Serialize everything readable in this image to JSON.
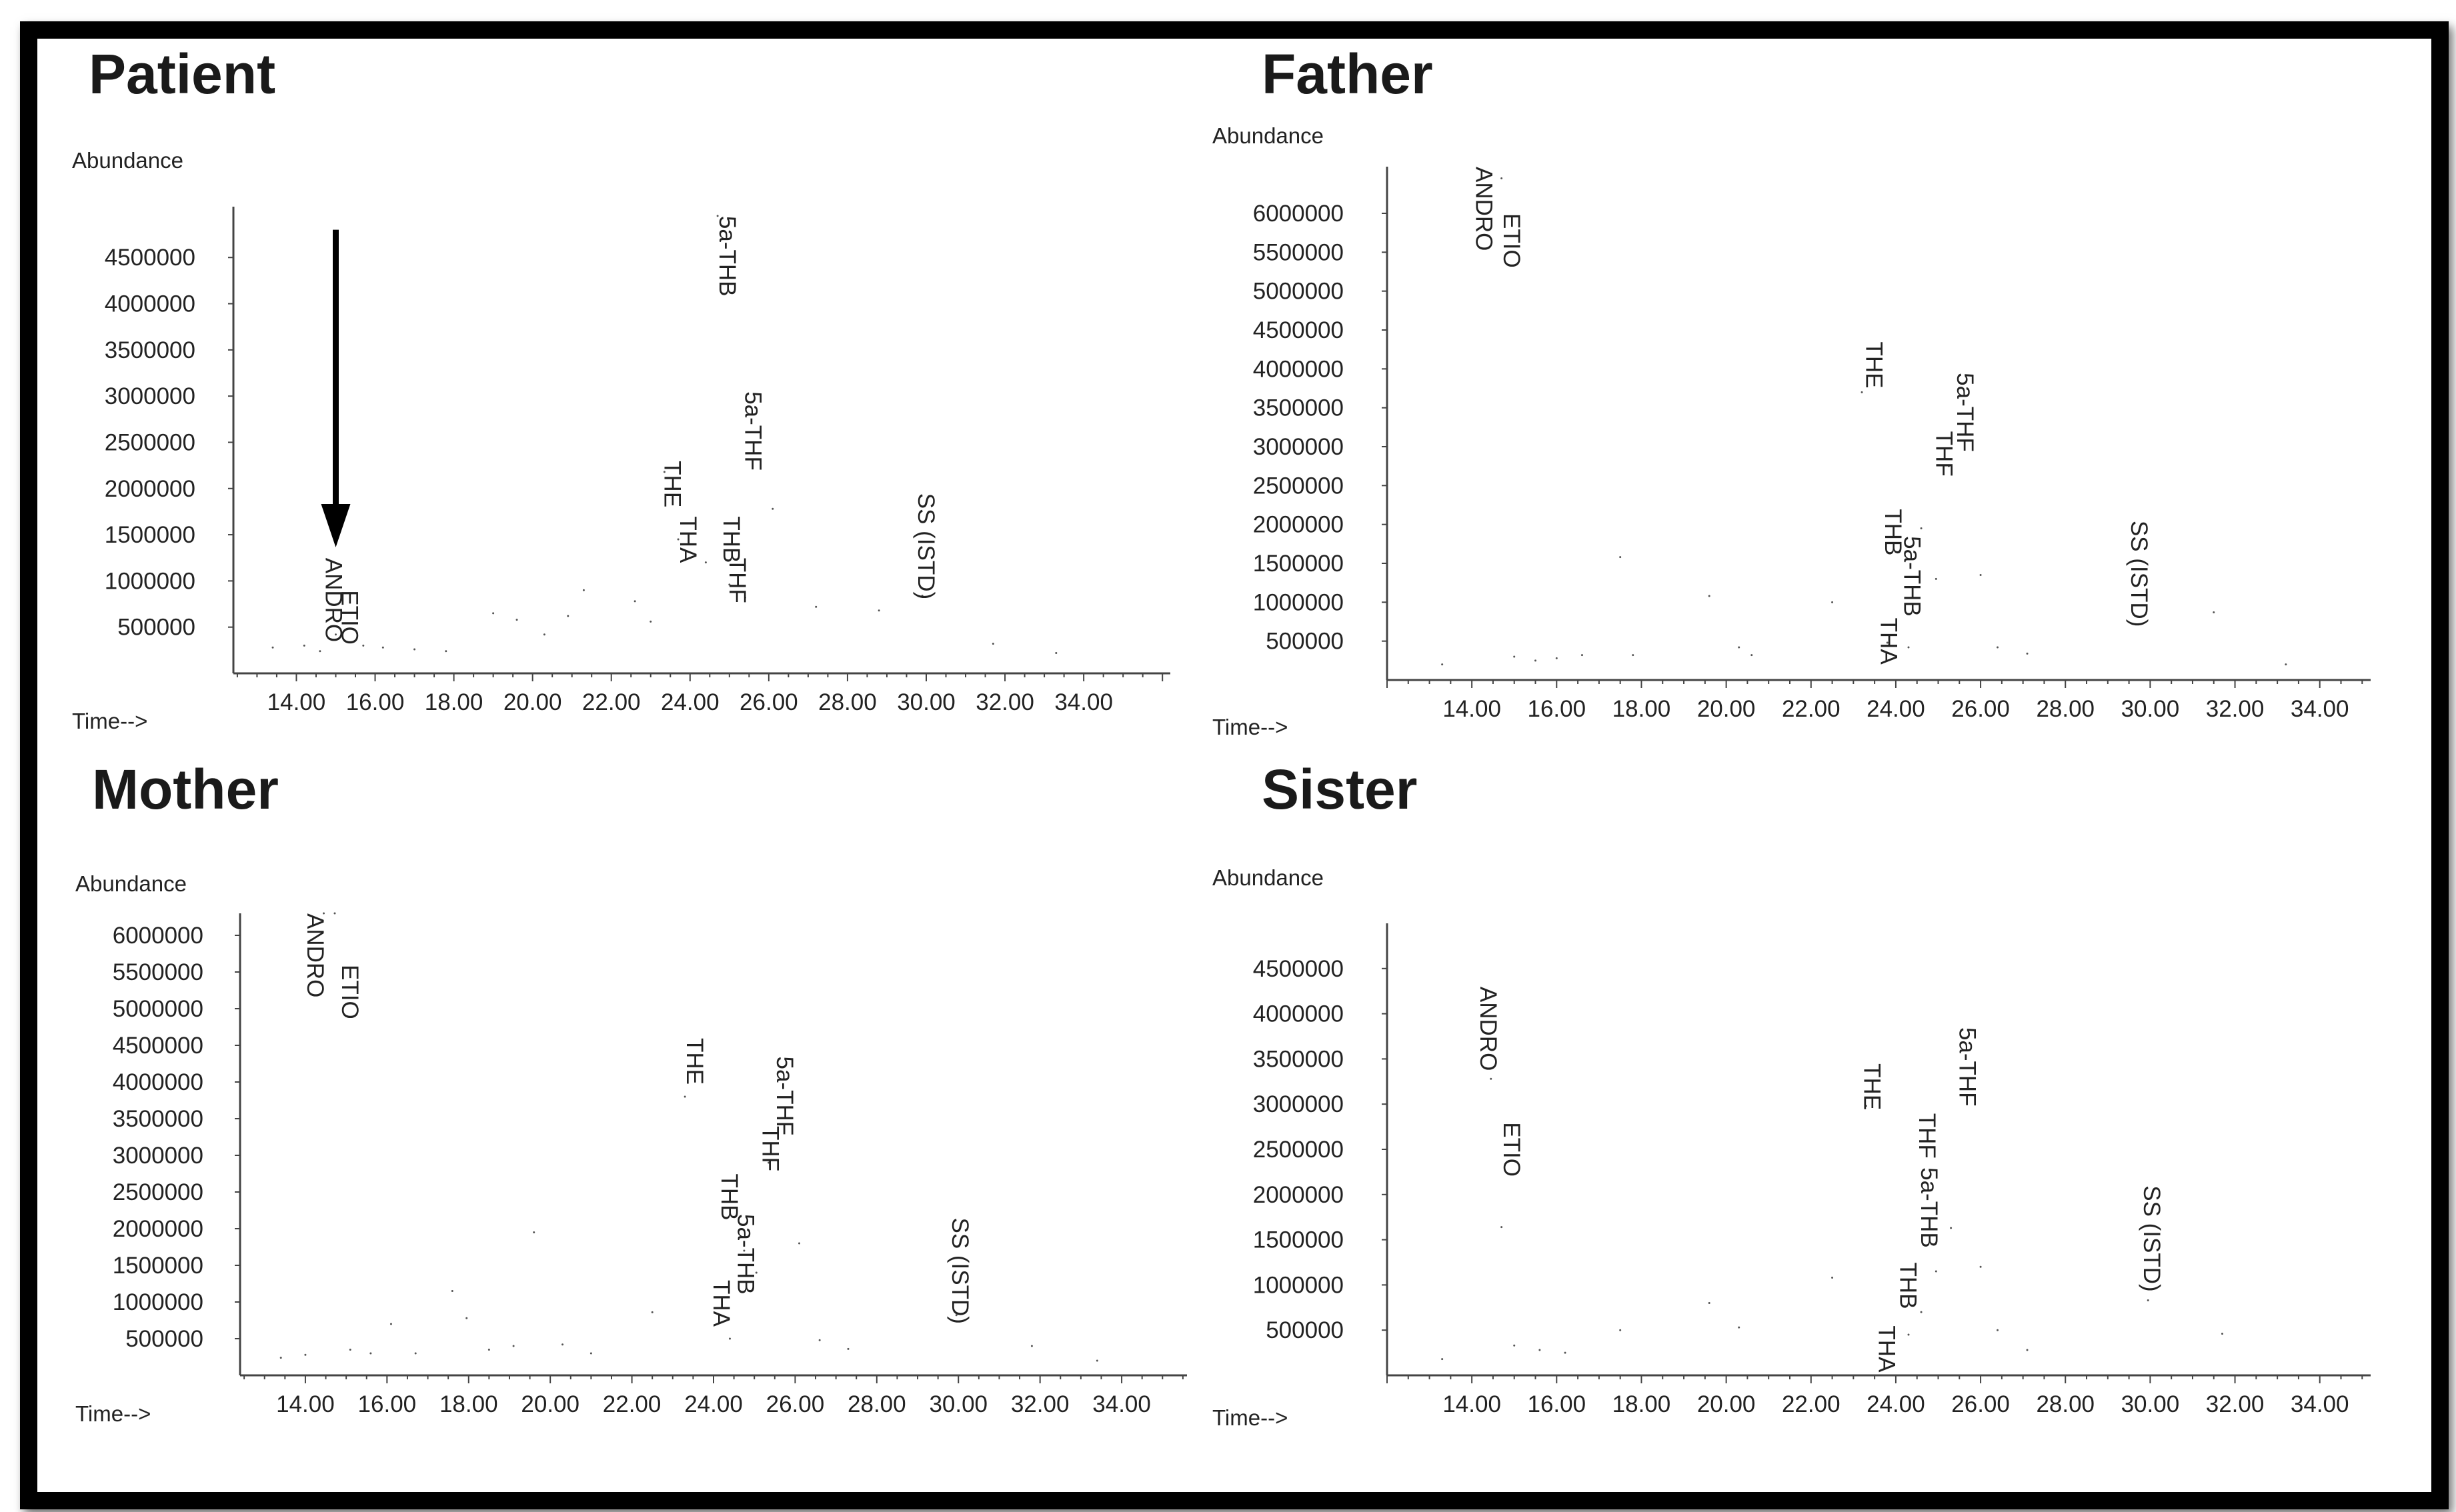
{
  "chart_data": [
    {
      "type": "line",
      "title": "Patient",
      "ylabel": "Abundance",
      "xlabel": "Time-->",
      "xlim": [
        12.4,
        36.2
      ],
      "ylim": [
        0,
        5050000
      ],
      "x_ticks": [
        "14.00",
        "16.00",
        "18.00",
        "20.00",
        "22.00",
        "24.00",
        "26.00",
        "28.00",
        "30.00",
        "32.00",
        "34.00"
      ],
      "y_ticks": [
        "500000",
        "1000000",
        "1500000",
        "2000000",
        "2500000",
        "3000000",
        "3500000",
        "4000000",
        "4500000"
      ],
      "baseline": 150000,
      "peaks": [
        {
          "x": 13.4,
          "y": 280000
        },
        {
          "x": 14.2,
          "y": 300000
        },
        {
          "x": 14.6,
          "y": 240000
        },
        {
          "x": 15.0,
          "y": 420000
        },
        {
          "x": 15.7,
          "y": 300000
        },
        {
          "x": 16.2,
          "y": 280000
        },
        {
          "x": 17.0,
          "y": 260000
        },
        {
          "x": 17.8,
          "y": 240000
        },
        {
          "x": 19.0,
          "y": 650000
        },
        {
          "x": 19.6,
          "y": 580000
        },
        {
          "x": 20.3,
          "y": 420000
        },
        {
          "x": 20.9,
          "y": 620000
        },
        {
          "x": 21.3,
          "y": 900000
        },
        {
          "x": 22.6,
          "y": 780000
        },
        {
          "x": 23.0,
          "y": 560000
        },
        {
          "x": 23.35,
          "y": 2180000
        },
        {
          "x": 23.7,
          "y": 1450000
        },
        {
          "x": 24.4,
          "y": 1200000
        },
        {
          "x": 24.7,
          "y": 4950000
        },
        {
          "x": 25.0,
          "y": 960000
        },
        {
          "x": 25.4,
          "y": 820000
        },
        {
          "x": 26.1,
          "y": 1780000
        },
        {
          "x": 27.2,
          "y": 720000
        },
        {
          "x": 28.8,
          "y": 680000
        },
        {
          "x": 29.9,
          "y": 840000
        },
        {
          "x": 31.7,
          "y": 320000
        },
        {
          "x": 33.3,
          "y": 220000
        }
      ],
      "annotations": [
        {
          "text": "5a-THB",
          "x": 24.75,
          "y": 4950000
        },
        {
          "text": "THE",
          "x": 23.35,
          "y": 2300000
        },
        {
          "text": "5a-THF",
          "x": 25.4,
          "y": 3050000
        },
        {
          "text": "THA",
          "x": 23.75,
          "y": 1700000
        },
        {
          "text": "THB",
          "x": 24.85,
          "y": 1700000
        },
        {
          "text": "THF",
          "x": 25.0,
          "y": 1250000
        },
        {
          "text": "SS (ISTD)",
          "x": 29.8,
          "y": 1950000
        },
        {
          "text": "ETIO",
          "x": 15.15,
          "y": 900000
        },
        {
          "text": "ANDRO",
          "x": 14.75,
          "y": 1250000
        }
      ],
      "arrow": {
        "x": 15.0,
        "y_from": 4800000,
        "y_to": 1400000
      }
    },
    {
      "type": "line",
      "title": "Father",
      "ylabel": "Abundance",
      "xlabel": "Time-->",
      "xlim": [
        12.0,
        35.2
      ],
      "ylim": [
        0,
        6600000
      ],
      "x_ticks": [
        "14.00",
        "16.00",
        "18.00",
        "20.00",
        "22.00",
        "24.00",
        "26.00",
        "28.00",
        "30.00",
        "32.00",
        "34.00"
      ],
      "y_ticks": [
        "500000",
        "1000000",
        "1500000",
        "2000000",
        "2500000",
        "3000000",
        "3500000",
        "4000000",
        "4500000",
        "5000000",
        "5500000",
        "6000000"
      ],
      "baseline": 120000,
      "peaks": [
        {
          "x": 13.3,
          "y": 200000
        },
        {
          "x": 14.45,
          "y": 6350000
        },
        {
          "x": 14.7,
          "y": 6450000
        },
        {
          "x": 15.0,
          "y": 300000
        },
        {
          "x": 15.5,
          "y": 250000
        },
        {
          "x": 16.0,
          "y": 280000
        },
        {
          "x": 16.6,
          "y": 320000
        },
        {
          "x": 17.5,
          "y": 1580000
        },
        {
          "x": 17.8,
          "y": 320000
        },
        {
          "x": 19.6,
          "y": 1080000
        },
        {
          "x": 20.3,
          "y": 420000
        },
        {
          "x": 20.6,
          "y": 320000
        },
        {
          "x": 22.5,
          "y": 1000000
        },
        {
          "x": 23.2,
          "y": 3700000
        },
        {
          "x": 23.8,
          "y": 480000
        },
        {
          "x": 24.3,
          "y": 420000
        },
        {
          "x": 24.6,
          "y": 1950000
        },
        {
          "x": 24.95,
          "y": 1300000
        },
        {
          "x": 25.25,
          "y": 2750000
        },
        {
          "x": 26.0,
          "y": 1350000
        },
        {
          "x": 26.4,
          "y": 420000
        },
        {
          "x": 27.1,
          "y": 340000
        },
        {
          "x": 29.6,
          "y": 720000
        },
        {
          "x": 31.5,
          "y": 870000
        },
        {
          "x": 33.2,
          "y": 200000
        }
      ],
      "annotations": [
        {
          "text": "ANDRO",
          "x": 14.1,
          "y": 6600000
        },
        {
          "text": "ETIO",
          "x": 14.75,
          "y": 6000000
        },
        {
          "text": "THE",
          "x": 23.3,
          "y": 4350000
        },
        {
          "text": "5a-THF",
          "x": 25.45,
          "y": 3950000
        },
        {
          "text": "THF",
          "x": 24.95,
          "y": 3200000
        },
        {
          "text": "THB",
          "x": 23.75,
          "y": 2200000
        },
        {
          "text": "5a-THB",
          "x": 24.2,
          "y": 1850000
        },
        {
          "text": "THA",
          "x": 23.65,
          "y": 800000
        },
        {
          "text": "SS (ISTD)",
          "x": 29.55,
          "y": 2050000
        }
      ]
    },
    {
      "type": "line",
      "title": "Mother",
      "ylabel": "Abundance",
      "xlabel": "Time-->",
      "xlim": [
        12.4,
        35.6
      ],
      "ylim": [
        0,
        6300000
      ],
      "x_ticks": [
        "14.00",
        "16.00",
        "18.00",
        "20.00",
        "22.00",
        "24.00",
        "26.00",
        "28.00",
        "30.00",
        "32.00",
        "34.00"
      ],
      "y_ticks": [
        "500000",
        "1000000",
        "1500000",
        "2000000",
        "2500000",
        "3000000",
        "3500000",
        "4000000",
        "4500000",
        "5000000",
        "5500000",
        "6000000"
      ],
      "baseline": 120000,
      "peaks": [
        {
          "x": 13.4,
          "y": 240000
        },
        {
          "x": 14.0,
          "y": 280000
        },
        {
          "x": 14.45,
          "y": 6300000
        },
        {
          "x": 14.72,
          "y": 6300000
        },
        {
          "x": 15.1,
          "y": 350000
        },
        {
          "x": 15.6,
          "y": 300000
        },
        {
          "x": 16.1,
          "y": 700000
        },
        {
          "x": 16.7,
          "y": 300000
        },
        {
          "x": 17.6,
          "y": 1150000
        },
        {
          "x": 17.95,
          "y": 780000
        },
        {
          "x": 18.5,
          "y": 350000
        },
        {
          "x": 19.1,
          "y": 400000
        },
        {
          "x": 19.6,
          "y": 1950000
        },
        {
          "x": 20.3,
          "y": 420000
        },
        {
          "x": 21.0,
          "y": 300000
        },
        {
          "x": 22.5,
          "y": 860000
        },
        {
          "x": 23.3,
          "y": 3800000
        },
        {
          "x": 24.4,
          "y": 500000
        },
        {
          "x": 24.75,
          "y": 1700000
        },
        {
          "x": 25.05,
          "y": 1400000
        },
        {
          "x": 25.35,
          "y": 2900000
        },
        {
          "x": 26.1,
          "y": 1800000
        },
        {
          "x": 26.6,
          "y": 480000
        },
        {
          "x": 27.3,
          "y": 360000
        },
        {
          "x": 29.95,
          "y": 820000
        },
        {
          "x": 31.8,
          "y": 400000
        },
        {
          "x": 33.4,
          "y": 200000
        }
      ],
      "annotations": [
        {
          "text": "ANDRO",
          "x": 14.05,
          "y": 6300000
        },
        {
          "text": "ETIO",
          "x": 14.9,
          "y": 5600000
        },
        {
          "text": "THE",
          "x": 23.35,
          "y": 4600000
        },
        {
          "text": "5a-THF",
          "x": 25.55,
          "y": 4350000
        },
        {
          "text": "THF",
          "x": 25.2,
          "y": 3400000
        },
        {
          "text": "THB",
          "x": 24.2,
          "y": 2750000
        },
        {
          "text": "5a-THB",
          "x": 24.6,
          "y": 2200000
        },
        {
          "text": "THA",
          "x": 24.0,
          "y": 1300000
        },
        {
          "text": "SS (ISTD)",
          "x": 29.85,
          "y": 2150000
        }
      ]
    },
    {
      "type": "line",
      "title": "Sister",
      "ylabel": "Abundance",
      "xlabel": "Time-->",
      "xlim": [
        12.0,
        35.2
      ],
      "ylim": [
        0,
        5000000
      ],
      "x_ticks": [
        "14.00",
        "16.00",
        "18.00",
        "20.00",
        "22.00",
        "24.00",
        "26.00",
        "28.00",
        "30.00",
        "32.00",
        "34.00"
      ],
      "y_ticks": [
        "500000",
        "1000000",
        "1500000",
        "2000000",
        "2500000",
        "3000000",
        "3500000",
        "4000000",
        "4500000"
      ],
      "baseline": 100000,
      "peaks": [
        {
          "x": 13.3,
          "y": 180000
        },
        {
          "x": 14.45,
          "y": 3280000
        },
        {
          "x": 14.7,
          "y": 1640000
        },
        {
          "x": 15.0,
          "y": 330000
        },
        {
          "x": 15.6,
          "y": 280000
        },
        {
          "x": 16.2,
          "y": 250000
        },
        {
          "x": 17.5,
          "y": 500000
        },
        {
          "x": 19.6,
          "y": 800000
        },
        {
          "x": 20.3,
          "y": 530000
        },
        {
          "x": 22.5,
          "y": 1080000
        },
        {
          "x": 23.3,
          "y": 2980000
        },
        {
          "x": 24.3,
          "y": 450000
        },
        {
          "x": 24.6,
          "y": 700000
        },
        {
          "x": 24.95,
          "y": 1150000
        },
        {
          "x": 25.3,
          "y": 1630000
        },
        {
          "x": 26.0,
          "y": 1200000
        },
        {
          "x": 26.4,
          "y": 500000
        },
        {
          "x": 27.1,
          "y": 280000
        },
        {
          "x": 29.95,
          "y": 830000
        },
        {
          "x": 31.7,
          "y": 460000
        }
      ],
      "annotations": [
        {
          "text": "ANDRO",
          "x": 14.2,
          "y": 4300000
        },
        {
          "text": "ETIO",
          "x": 14.75,
          "y": 2800000
        },
        {
          "text": "THE",
          "x": 23.25,
          "y": 3450000
        },
        {
          "text": "5a-THF",
          "x": 25.5,
          "y": 3850000
        },
        {
          "text": "THF",
          "x": 24.55,
          "y": 2900000
        },
        {
          "text": "5a-THB",
          "x": 24.6,
          "y": 2300000
        },
        {
          "text": "THB",
          "x": 24.1,
          "y": 1250000
        },
        {
          "text": "THA",
          "x": 23.6,
          "y": 550000
        },
        {
          "text": "SS (ISTD)",
          "x": 29.85,
          "y": 2100000
        }
      ]
    }
  ]
}
